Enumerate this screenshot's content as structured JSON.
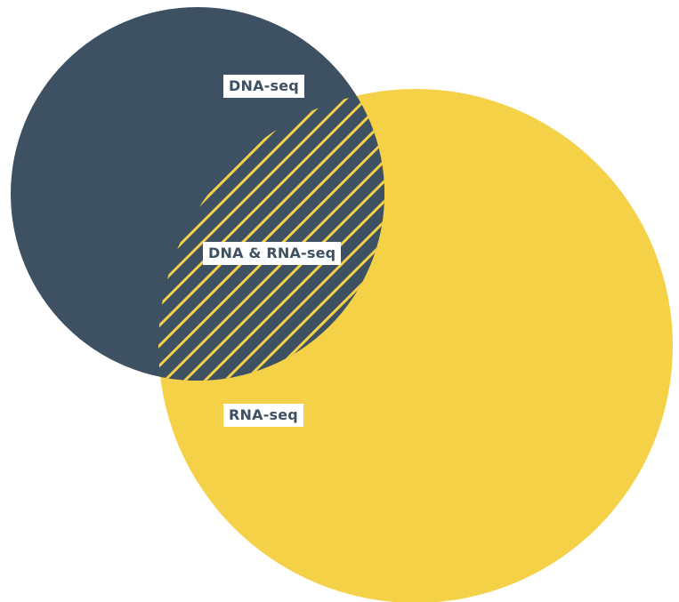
{
  "sets": [
    {
      "key": "dna",
      "label": "DNA-seq",
      "color": "#3d5163"
    },
    {
      "key": "rna",
      "label": "RNA-seq",
      "color": "#f4d147"
    }
  ],
  "intersection": {
    "label": "DNA & RNA-seq",
    "fill": "#3d5163",
    "hatch_color": "#f4d147"
  },
  "label_text_color": "#3d5163",
  "label_background": "#ffffff"
}
